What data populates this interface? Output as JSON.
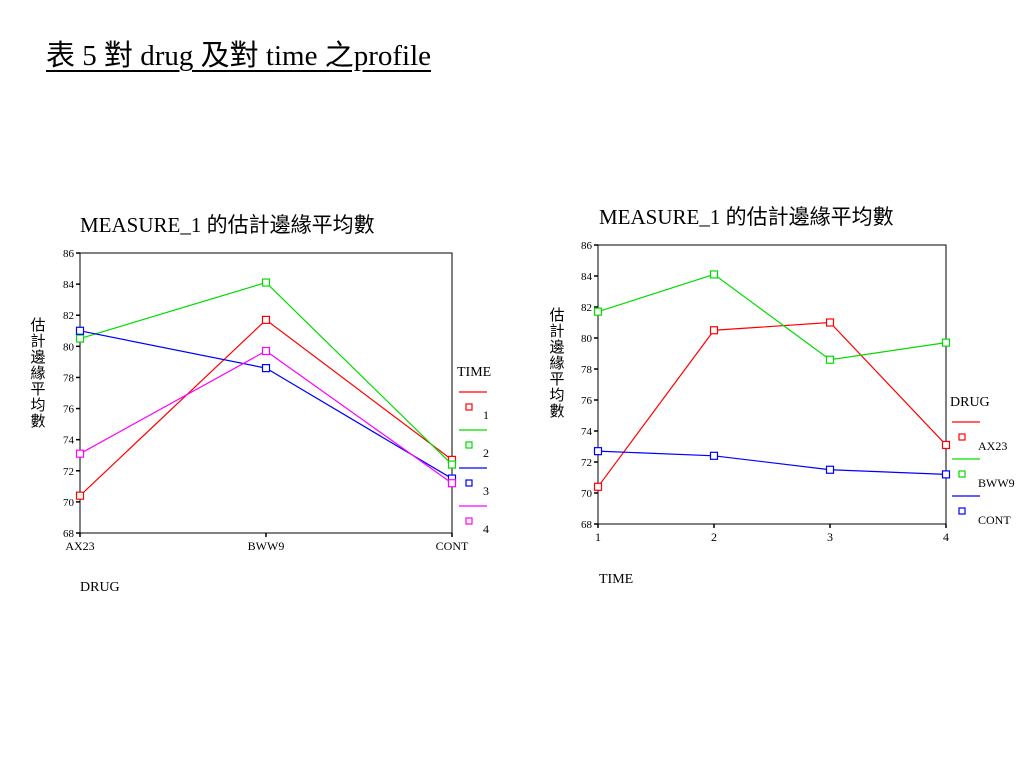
{
  "slide": {
    "title": "表 5 對 drug 及對 time 之profile"
  },
  "chart_data": [
    {
      "type": "line",
      "title": "MEASURE_1 的估計邊緣平均數",
      "xlabel": "DRUG",
      "ylabel": "估計邊緣平均數",
      "categories": [
        "AX23",
        "BWW9",
        "CONT"
      ],
      "ylim": [
        68,
        86
      ],
      "yticks": [
        68,
        70,
        72,
        74,
        76,
        78,
        80,
        82,
        84,
        86
      ],
      "grid": false,
      "legend": {
        "title": "TIME",
        "placement": "right"
      },
      "series": [
        {
          "name": "1",
          "color": "#ff0000",
          "values": [
            70.4,
            81.7,
            72.7
          ]
        },
        {
          "name": "2",
          "color": "#00dd00",
          "values": [
            80.5,
            84.1,
            72.4
          ]
        },
        {
          "name": "3",
          "color": "#0000ff",
          "values": [
            81.0,
            78.6,
            71.5
          ]
        },
        {
          "name": "4",
          "color": "#ff00ff",
          "values": [
            73.1,
            79.7,
            71.2
          ]
        }
      ]
    },
    {
      "type": "line",
      "title": "MEASURE_1 的估計邊緣平均數",
      "xlabel": "TIME",
      "ylabel": "估計邊緣平均數",
      "categories": [
        "1",
        "2",
        "3",
        "4"
      ],
      "ylim": [
        68,
        86
      ],
      "yticks": [
        68,
        70,
        72,
        74,
        76,
        78,
        80,
        82,
        84,
        86
      ],
      "grid": false,
      "legend": {
        "title": "DRUG",
        "placement": "right"
      },
      "series": [
        {
          "name": "AX23",
          "color": "#ff0000",
          "values": [
            70.4,
            80.5,
            81.0,
            73.1
          ]
        },
        {
          "name": "BWW9",
          "color": "#00dd00",
          "values": [
            81.7,
            84.1,
            78.6,
            79.7
          ]
        },
        {
          "name": "CONT",
          "color": "#0000ff",
          "values": [
            72.7,
            72.4,
            71.5,
            71.2
          ]
        }
      ]
    }
  ]
}
